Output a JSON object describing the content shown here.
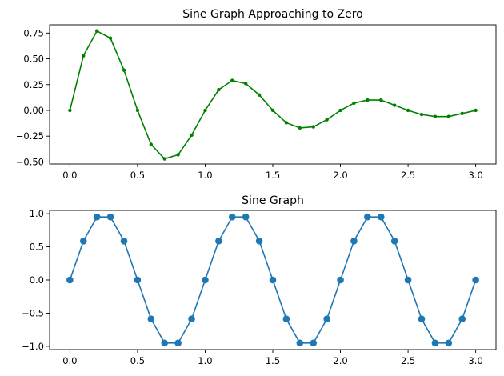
{
  "chart_data": [
    {
      "type": "line",
      "title": "Sine Graph Approaching to Zero",
      "xlabel": "",
      "ylabel": "",
      "xlim": [
        -0.15,
        3.15
      ],
      "ylim": [
        -0.52,
        0.83
      ],
      "xticks": [
        0.0,
        0.5,
        1.0,
        1.5,
        2.0,
        2.5,
        3.0
      ],
      "xtick_labels": [
        "0.0",
        "0.5",
        "1.0",
        "1.5",
        "2.0",
        "2.5",
        "3.0"
      ],
      "yticks": [
        -0.5,
        -0.25,
        0.0,
        0.25,
        0.5,
        0.75
      ],
      "ytick_labels": [
        "−0.50",
        "−0.25",
        "0.00",
        "0.25",
        "0.50",
        "0.75"
      ],
      "grid": false,
      "color": "#008000",
      "marker": "small-dot",
      "series": [
        {
          "x": [
            0.0,
            0.1,
            0.2,
            0.3,
            0.4,
            0.5,
            0.6,
            0.7,
            0.8,
            0.9,
            1.0,
            1.1,
            1.2,
            1.3,
            1.4,
            1.5,
            1.6,
            1.7,
            1.8,
            1.9,
            2.0,
            2.1,
            2.2,
            2.3,
            2.4,
            2.5,
            2.6,
            2.7,
            2.8,
            2.9,
            3.0
          ],
          "y": [
            0.0,
            0.53,
            0.77,
            0.7,
            0.39,
            0.0,
            -0.33,
            -0.47,
            -0.43,
            -0.24,
            0.0,
            0.2,
            0.29,
            0.26,
            0.15,
            0.0,
            -0.12,
            -0.17,
            -0.16,
            -0.09,
            0.0,
            0.07,
            0.1,
            0.1,
            0.05,
            0.0,
            -0.04,
            -0.06,
            -0.06,
            -0.03,
            0.0
          ]
        }
      ]
    },
    {
      "type": "line",
      "title": "Sine Graph",
      "xlabel": "",
      "ylabel": "",
      "xlim": [
        -0.15,
        3.15
      ],
      "ylim": [
        -1.05,
        1.05
      ],
      "xticks": [
        0.0,
        0.5,
        1.0,
        1.5,
        2.0,
        2.5,
        3.0
      ],
      "xtick_labels": [
        "0.0",
        "0.5",
        "1.0",
        "1.5",
        "2.0",
        "2.5",
        "3.0"
      ],
      "yticks": [
        -1.0,
        -0.5,
        0.0,
        0.5,
        1.0
      ],
      "ytick_labels": [
        "−1.0",
        "−0.5",
        "0.0",
        "0.5",
        "1.0"
      ],
      "grid": false,
      "color": "#1f77b4",
      "marker": "large-dot",
      "series": [
        {
          "x": [
            0.0,
            0.1,
            0.2,
            0.3,
            0.4,
            0.5,
            0.6,
            0.7,
            0.8,
            0.9,
            1.0,
            1.1,
            1.2,
            1.3,
            1.4,
            1.5,
            1.6,
            1.7,
            1.8,
            1.9,
            2.0,
            2.1,
            2.2,
            2.3,
            2.4,
            2.5,
            2.6,
            2.7,
            2.8,
            2.9,
            3.0
          ],
          "y": [
            0.0,
            0.588,
            0.951,
            0.951,
            0.588,
            0.0,
            -0.588,
            -0.951,
            -0.951,
            -0.588,
            0.0,
            0.588,
            0.951,
            0.951,
            0.588,
            0.0,
            -0.588,
            -0.951,
            -0.951,
            -0.588,
            0.0,
            0.588,
            0.951,
            0.951,
            0.588,
            0.0,
            -0.588,
            -0.951,
            -0.951,
            -0.588,
            0.0
          ]
        }
      ]
    }
  ]
}
